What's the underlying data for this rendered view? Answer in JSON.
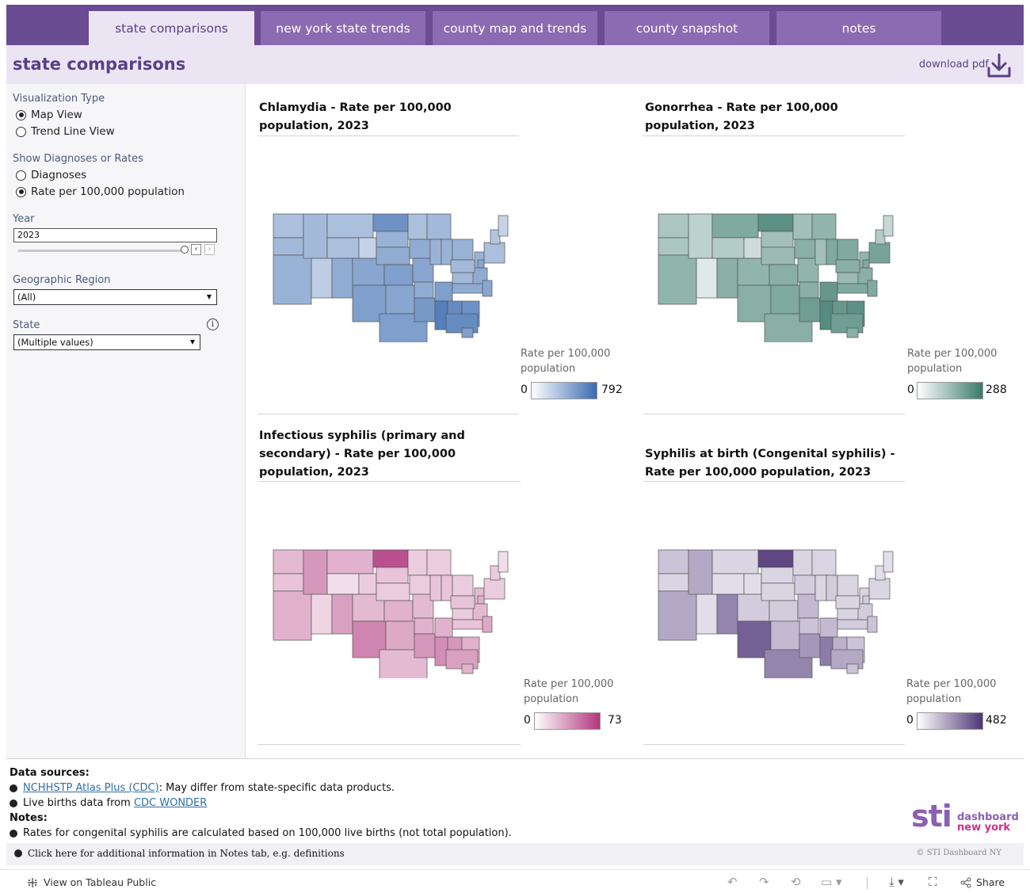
{
  "tabs": [
    {
      "label": "state comparisons",
      "active": true
    },
    {
      "label": "new york state trends",
      "active": false
    },
    {
      "label": "county map and trends",
      "active": false
    },
    {
      "label": "county snapshot",
      "active": false
    },
    {
      "label": "notes",
      "active": false
    }
  ],
  "header": {
    "title": "state comparisons",
    "download_label": "download pdf",
    "download_icon": "download-icon"
  },
  "filters": {
    "viz_type": {
      "label": "Visualization Type",
      "options": [
        "Map View",
        "Trend Line View"
      ],
      "selected": "Map View"
    },
    "measure": {
      "label": "Show Diagnoses or Rates",
      "options": [
        "Diagnoses",
        "Rate per 100,000 population"
      ],
      "selected": "Rate per 100,000 population"
    },
    "year": {
      "label": "Year",
      "value": "2023"
    },
    "region": {
      "label": "Geographic Region",
      "value": "(All)"
    },
    "state": {
      "label": "State",
      "value": "(Multiple values)",
      "info_icon": "info-icon"
    }
  },
  "maps": [
    {
      "title": "Chlamydia - Rate per 100,000 population, 2023",
      "legend_title": "Rate per 100,000 population",
      "min": "0",
      "max": "792",
      "color_low": "#ffffff",
      "color_high": "#3a6bb0"
    },
    {
      "title": "Gonorrhea - Rate per 100,000 population, 2023",
      "legend_title": "Rate per 100,000 population",
      "min": "0",
      "max": "288",
      "color_low": "#ffffff",
      "color_high": "#3b7a6b"
    },
    {
      "title": "Infectious syphilis (primary and secondary) - Rate per 100,000 population, 2023",
      "legend_title": "Rate per 100,000 population",
      "min": "0",
      "max": "73",
      "color_low": "#ffffff",
      "color_high": "#b0357d"
    },
    {
      "title": "Syphilis at birth (Congenital syphilis) - Rate per 100,000 population, 2023",
      "legend_title": "Rate per 100,000 population",
      "min": "0",
      "max": "482",
      "color_low": "#ffffff",
      "color_high": "#4e3577"
    }
  ],
  "notes": {
    "sources_heading": "Data sources:",
    "source1_link": "NCHHSTP Atlas Plus (CDC)",
    "source1_text": ": May differ from state-specific data products.",
    "source2_text": "Live births data from ",
    "source2_link": "CDC WONDER",
    "notes_heading": "Notes:",
    "note1": "Rates for congenital syphilis are calculated based on 100,000 live births (not total population).",
    "click_note": "Click here for additional information in Notes tab, e.g. definitions",
    "copyright": "© STI Dashboard NY"
  },
  "logo": {
    "sti": "sti",
    "dashboard": "dashboard",
    "newyork": "new york"
  },
  "toolbar": {
    "view_label": "View on Tableau Public",
    "share_label": "Share"
  }
}
